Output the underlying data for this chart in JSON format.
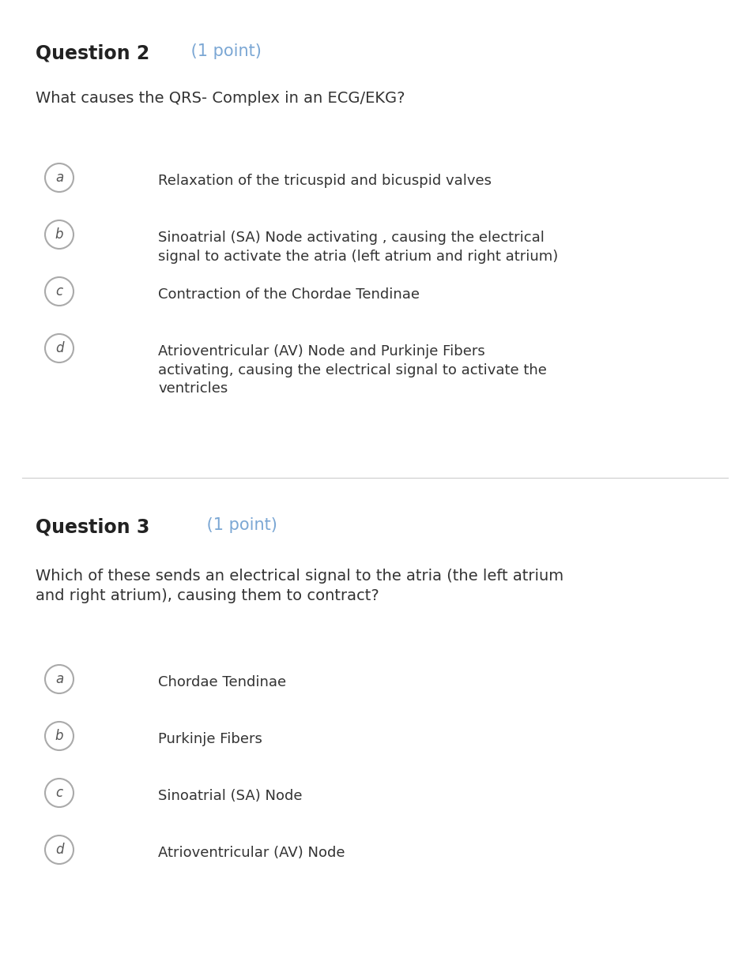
{
  "bg_color": "#ffffff",
  "q2_label": "Question 2",
  "q2_label_color": "#222222",
  "q2_point": " (1 point)",
  "q2_point_color": "#7ba7d4",
  "q2_text": "What causes the QRS- Complex in an ECG/EKG?",
  "q2_options": [
    {
      "letter": "a",
      "text": "Relaxation of the tricuspid and bicuspid valves"
    },
    {
      "letter": "b",
      "text": "Sinoatrial (SA) Node activating , causing the electrical\nsignal to activate the atria (left atrium and right atrium)"
    },
    {
      "letter": "c",
      "text": "Contraction of the Chordae Tendinae"
    },
    {
      "letter": "d",
      "text": "Atrioventricular (AV) Node and Purkinje Fibers\nactivating, causing the electrical signal to activate the\nventricles"
    }
  ],
  "q3_label": "Question 3",
  "q3_label_color": "#222222",
  "q3_point": " (1 point)",
  "q3_point_color": "#7ba7d4",
  "q3_text": "Which of these sends an electrical signal to the atria (the left atrium\nand right atrium), causing them to contract?",
  "q3_options": [
    {
      "letter": "a",
      "text": "Chordae Tendinae"
    },
    {
      "letter": "b",
      "text": "Purkinje Fibers"
    },
    {
      "letter": "c",
      "text": "Sinoatrial (SA) Node"
    },
    {
      "letter": "d",
      "text": "Atrioventricular (AV) Node"
    }
  ],
  "circle_color": "#aaaaaa",
  "letter_color": "#555555",
  "text_color": "#333333",
  "divider_color": "#cccccc"
}
